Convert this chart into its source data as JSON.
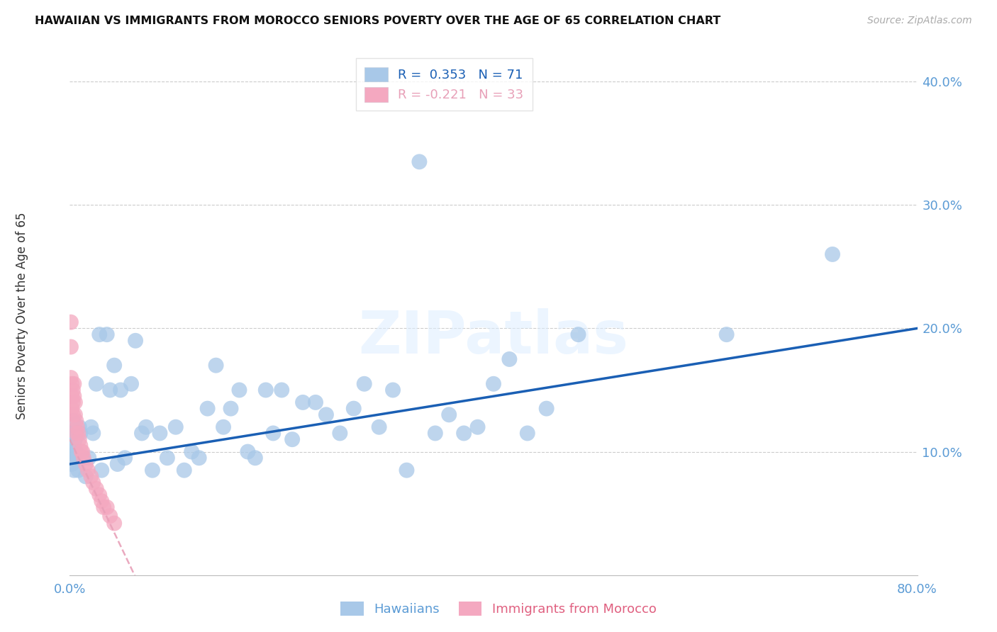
{
  "title": "HAWAIIAN VS IMMIGRANTS FROM MOROCCO SENIORS POVERTY OVER THE AGE OF 65 CORRELATION CHART",
  "source": "Source: ZipAtlas.com",
  "tick_color": "#5b9bd5",
  "ylabel": "Seniors Poverty Over the Age of 65",
  "xlim": [
    0.0,
    0.8
  ],
  "ylim": [
    0.0,
    0.42
  ],
  "hawaiian_color": "#a8c8e8",
  "morocco_color": "#f4a8c0",
  "hawaiian_line_color": "#1a5fb4",
  "morocco_line_color": "#e8a0b8",
  "watermark": "ZIPatlas",
  "legend_R_hawaiian": "R =  0.353",
  "legend_N_hawaiian": "N = 71",
  "legend_R_morocco": "R = -0.221",
  "legend_N_morocco": "N = 33",
  "hawaiian_x": [
    0.001,
    0.002,
    0.002,
    0.003,
    0.003,
    0.004,
    0.004,
    0.005,
    0.005,
    0.006,
    0.007,
    0.008,
    0.009,
    0.01,
    0.012,
    0.015,
    0.018,
    0.02,
    0.022,
    0.025,
    0.028,
    0.03,
    0.035,
    0.038,
    0.042,
    0.045,
    0.048,
    0.052,
    0.058,
    0.062,
    0.068,
    0.072,
    0.078,
    0.085,
    0.092,
    0.1,
    0.108,
    0.115,
    0.122,
    0.13,
    0.138,
    0.145,
    0.152,
    0.16,
    0.168,
    0.175,
    0.185,
    0.192,
    0.2,
    0.21,
    0.22,
    0.232,
    0.242,
    0.255,
    0.268,
    0.278,
    0.292,
    0.305,
    0.318,
    0.33,
    0.345,
    0.358,
    0.372,
    0.385,
    0.4,
    0.415,
    0.432,
    0.45,
    0.48,
    0.62,
    0.72
  ],
  "hawaiian_y": [
    0.115,
    0.105,
    0.09,
    0.125,
    0.1,
    0.085,
    0.115,
    0.095,
    0.11,
    0.1,
    0.095,
    0.085,
    0.12,
    0.115,
    0.095,
    0.08,
    0.095,
    0.12,
    0.115,
    0.155,
    0.195,
    0.085,
    0.195,
    0.15,
    0.17,
    0.09,
    0.15,
    0.095,
    0.155,
    0.19,
    0.115,
    0.12,
    0.085,
    0.115,
    0.095,
    0.12,
    0.085,
    0.1,
    0.095,
    0.135,
    0.17,
    0.12,
    0.135,
    0.15,
    0.1,
    0.095,
    0.15,
    0.115,
    0.15,
    0.11,
    0.14,
    0.14,
    0.13,
    0.115,
    0.135,
    0.155,
    0.12,
    0.15,
    0.085,
    0.335,
    0.115,
    0.13,
    0.115,
    0.12,
    0.155,
    0.175,
    0.115,
    0.135,
    0.195,
    0.195,
    0.26
  ],
  "morocco_x": [
    0.001,
    0.001,
    0.001,
    0.002,
    0.002,
    0.002,
    0.003,
    0.003,
    0.003,
    0.004,
    0.004,
    0.005,
    0.005,
    0.006,
    0.006,
    0.007,
    0.008,
    0.009,
    0.01,
    0.011,
    0.012,
    0.013,
    0.015,
    0.017,
    0.02,
    0.022,
    0.025,
    0.028,
    0.03,
    0.032,
    0.035,
    0.038,
    0.042
  ],
  "morocco_y": [
    0.205,
    0.185,
    0.16,
    0.155,
    0.145,
    0.135,
    0.15,
    0.14,
    0.13,
    0.155,
    0.145,
    0.14,
    0.13,
    0.125,
    0.115,
    0.12,
    0.115,
    0.11,
    0.105,
    0.1,
    0.1,
    0.095,
    0.09,
    0.085,
    0.08,
    0.075,
    0.07,
    0.065,
    0.06,
    0.055,
    0.055,
    0.048,
    0.042
  ]
}
